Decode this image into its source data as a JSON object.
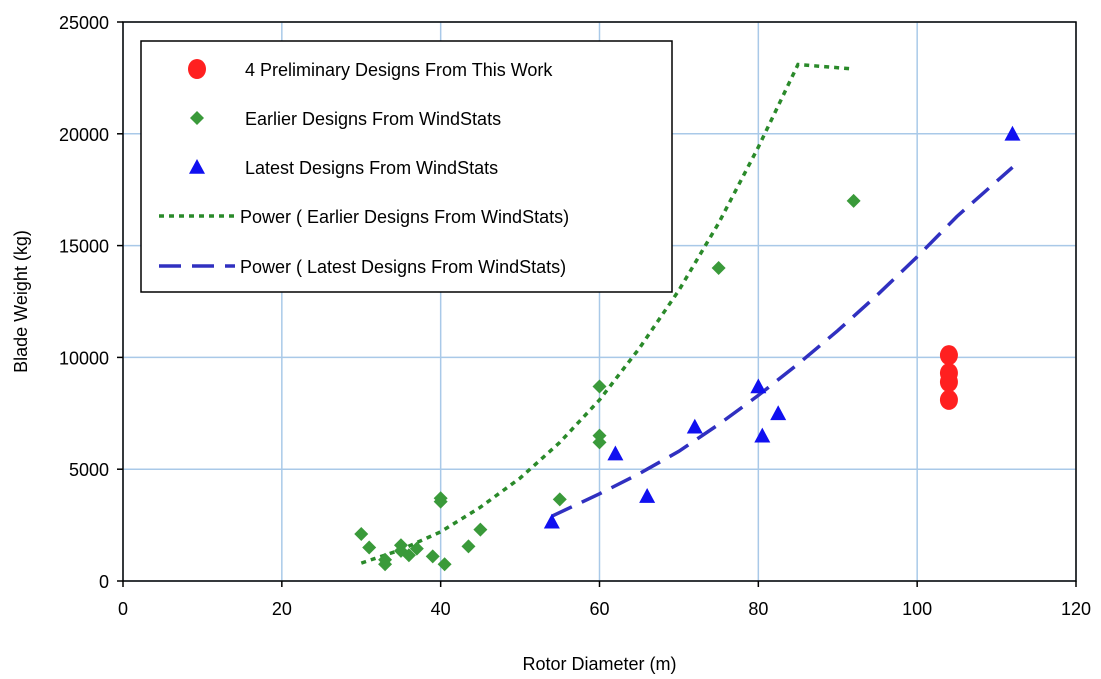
{
  "chart_data": {
    "type": "scatter",
    "xlabel": "Rotor Diameter (m)",
    "ylabel": "Blade  Weight (kg)",
    "xlim": [
      0,
      120
    ],
    "ylim": [
      0,
      25000
    ],
    "x_ticks": [
      0,
      20,
      40,
      60,
      80,
      100,
      120
    ],
    "y_ticks": [
      0,
      5000,
      10000,
      15000,
      20000,
      25000
    ],
    "x_tick_labels": [
      "0",
      "20",
      "40",
      "60",
      "80",
      "100",
      "120"
    ],
    "y_tick_labels": [
      "0",
      "5000",
      "10000",
      "15000",
      "20000",
      "25000"
    ],
    "grid": true,
    "legend_position": "top-left",
    "series": [
      {
        "name": "4 Preliminary Designs From This Work",
        "marker": "circle",
        "color": "#ff2020",
        "points": [
          [
            104,
            10100
          ],
          [
            104,
            9300
          ],
          [
            104,
            8900
          ],
          [
            104,
            8100
          ]
        ]
      },
      {
        "name": "Earlier Designs From WindStats",
        "marker": "diamond",
        "color": "#3a9a3a",
        "points": [
          [
            30,
            2100
          ],
          [
            31,
            1500
          ],
          [
            33,
            750
          ],
          [
            33,
            950
          ],
          [
            35,
            1600
          ],
          [
            35,
            1350
          ],
          [
            36,
            1150
          ],
          [
            37,
            1450
          ],
          [
            39,
            1100
          ],
          [
            40,
            3700
          ],
          [
            40,
            3550
          ],
          [
            40.5,
            750
          ],
          [
            43.5,
            1550
          ],
          [
            45,
            2300
          ],
          [
            55,
            3650
          ],
          [
            60,
            8700
          ],
          [
            60,
            6500
          ],
          [
            60,
            6200
          ],
          [
            75,
            14000
          ],
          [
            92,
            17000
          ]
        ]
      },
      {
        "name": "Latest Designs From WindStats",
        "marker": "triangle",
        "color": "#1010f0",
        "points": [
          [
            54,
            2650
          ],
          [
            62,
            5700
          ],
          [
            66,
            3800
          ],
          [
            72,
            6900
          ],
          [
            80,
            8700
          ],
          [
            80.5,
            6500
          ],
          [
            82.5,
            7500
          ],
          [
            112,
            20000
          ]
        ]
      },
      {
        "name": "Power ( Earlier Designs From WindStats)",
        "style": "dotted",
        "color": "#2a8a2a",
        "points": [
          [
            30,
            800
          ],
          [
            35,
            1400
          ],
          [
            40,
            2200
          ],
          [
            45,
            3300
          ],
          [
            50,
            4600
          ],
          [
            55,
            6200
          ],
          [
            60,
            8100
          ],
          [
            65,
            10400
          ],
          [
            70,
            13000
          ],
          [
            75,
            16000
          ],
          [
            80,
            19400
          ],
          [
            85,
            23100
          ],
          [
            92,
            22900
          ]
        ]
      },
      {
        "name": "Power ( Latest Designs From WindStats)",
        "style": "dashed",
        "color": "#3030c0",
        "points": [
          [
            54,
            2900
          ],
          [
            60,
            3900
          ],
          [
            65,
            4800
          ],
          [
            70,
            5800
          ],
          [
            75,
            7000
          ],
          [
            80,
            8300
          ],
          [
            85,
            9700
          ],
          [
            90,
            11200
          ],
          [
            95,
            12800
          ],
          [
            100,
            14500
          ],
          [
            105,
            16300
          ],
          [
            112,
            18500
          ]
        ]
      }
    ]
  }
}
